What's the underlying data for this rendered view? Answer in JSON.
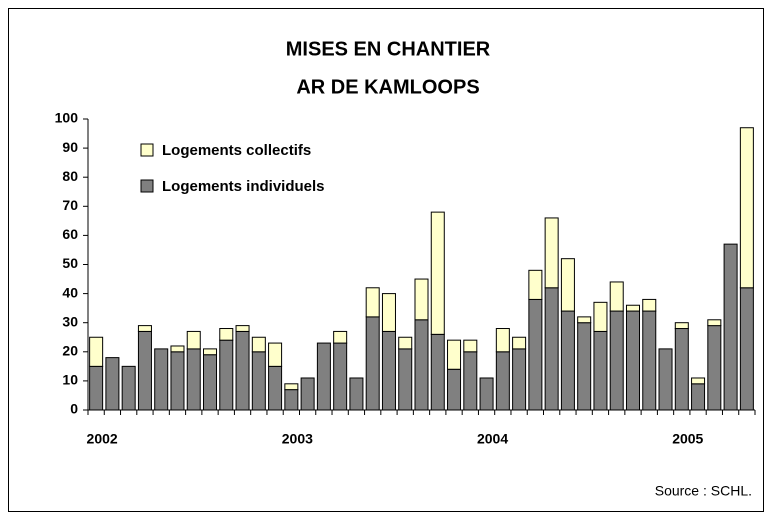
{
  "chart_data": {
    "type": "stacked_bar",
    "title": [
      "MISES EN CHANTIER",
      "AR DE KAMLOOPS"
    ],
    "source": "Source : SCHL.",
    "categories": [
      "2002",
      null,
      null,
      null,
      null,
      null,
      null,
      null,
      null,
      null,
      null,
      null,
      "2003",
      null,
      null,
      null,
      null,
      null,
      null,
      null,
      null,
      null,
      null,
      null,
      "2004",
      null,
      null,
      null,
      null,
      null,
      null,
      null,
      null,
      null,
      null,
      null,
      "2005",
      null,
      null,
      null,
      null
    ],
    "series": [
      {
        "name": "Logements individuels",
        "color": "#808080",
        "values": [
          15,
          18,
          15,
          27,
          21,
          20,
          21,
          19,
          24,
          27,
          20,
          15,
          7,
          11,
          23,
          23,
          11,
          32,
          27,
          21,
          31,
          26,
          14,
          20,
          11,
          20,
          21,
          38,
          42,
          34,
          30,
          27,
          34,
          34,
          34,
          21,
          28,
          9,
          29,
          57,
          42
        ]
      },
      {
        "name": "Logements collectifs",
        "color": "#ffffcc",
        "values": [
          10,
          0,
          0,
          2,
          0,
          2,
          6,
          2,
          4,
          2,
          5,
          8,
          2,
          0,
          0,
          4,
          0,
          10,
          13,
          4,
          14,
          42,
          10,
          4,
          0,
          8,
          4,
          10,
          24,
          18,
          2,
          10,
          10,
          2,
          4,
          0,
          2,
          2,
          2,
          0,
          55
        ]
      }
    ],
    "ylim": [
      0,
      100
    ],
    "yticks": [
      0,
      10,
      20,
      30,
      40,
      50,
      60,
      70,
      80,
      90,
      100
    ],
    "legend": "upper left"
  }
}
